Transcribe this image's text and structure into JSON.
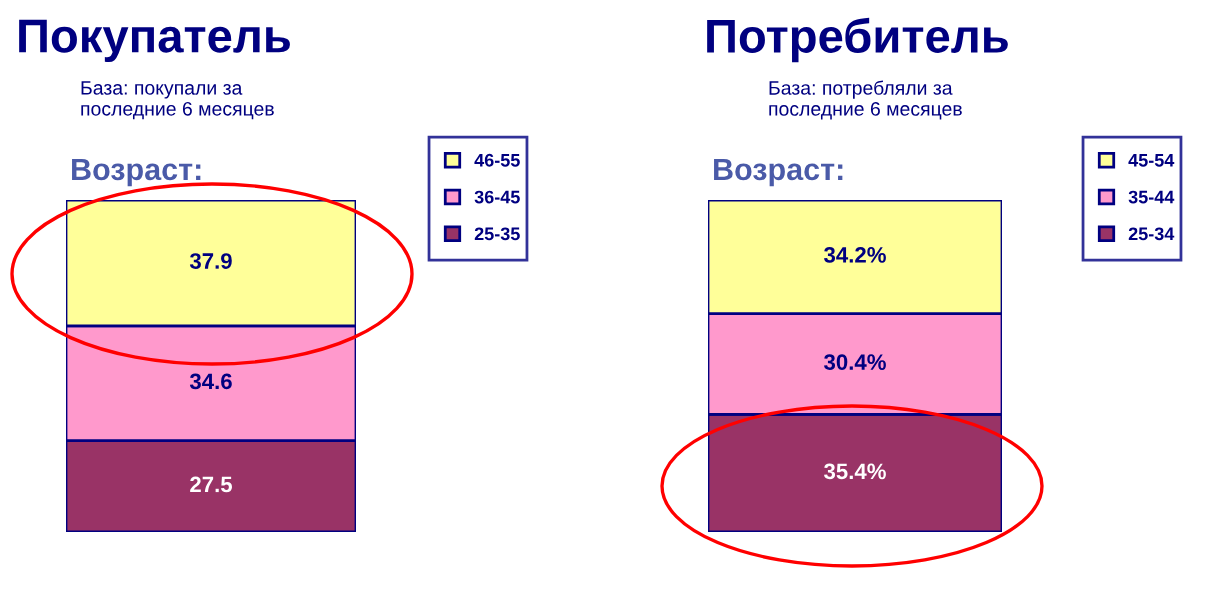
{
  "chart_data": [
    {
      "type": "bar",
      "stacked": true,
      "title": "Покупатель",
      "subtitle": "База: покупали за\nпоследние 6 месяцев",
      "annotations": [
        "Возраст:"
      ],
      "categories": [
        null
      ],
      "legend": "right",
      "data_labels": true,
      "grid": false,
      "tick_labels": false,
      "series": [
        {
          "name": "25-35",
          "color": "#993366",
          "values": [
            27.5
          ]
        },
        {
          "name": "36-45",
          "color": "#ff99cc",
          "values": [
            34.6
          ]
        },
        {
          "name": "46-55",
          "color": "#ffff99",
          "values": [
            37.9
          ]
        }
      ]
    },
    {
      "type": "bar",
      "stacked": true,
      "title": "Потребитель",
      "subtitle": "База: потребляли за\nпоследние 6 месяцев",
      "annotations": [
        "Возраст:"
      ],
      "categories": [
        null
      ],
      "legend": "right",
      "grid": false,
      "tick_labels": false,
      "series": [
        {
          "name": "25-34",
          "color": "#993366",
          "values": [
            35.4
          ],
          "value_labels": [
            "35.4%"
          ]
        },
        {
          "name": "35-44",
          "color": "#ff99cc",
          "values": [
            30.4
          ],
          "value_labels": [
            "30.4%"
          ]
        },
        {
          "name": "45-54",
          "color": "#ffff99",
          "values": [
            34.2
          ],
          "value_labels": [
            "34.2%"
          ]
        }
      ]
    }
  ]
}
